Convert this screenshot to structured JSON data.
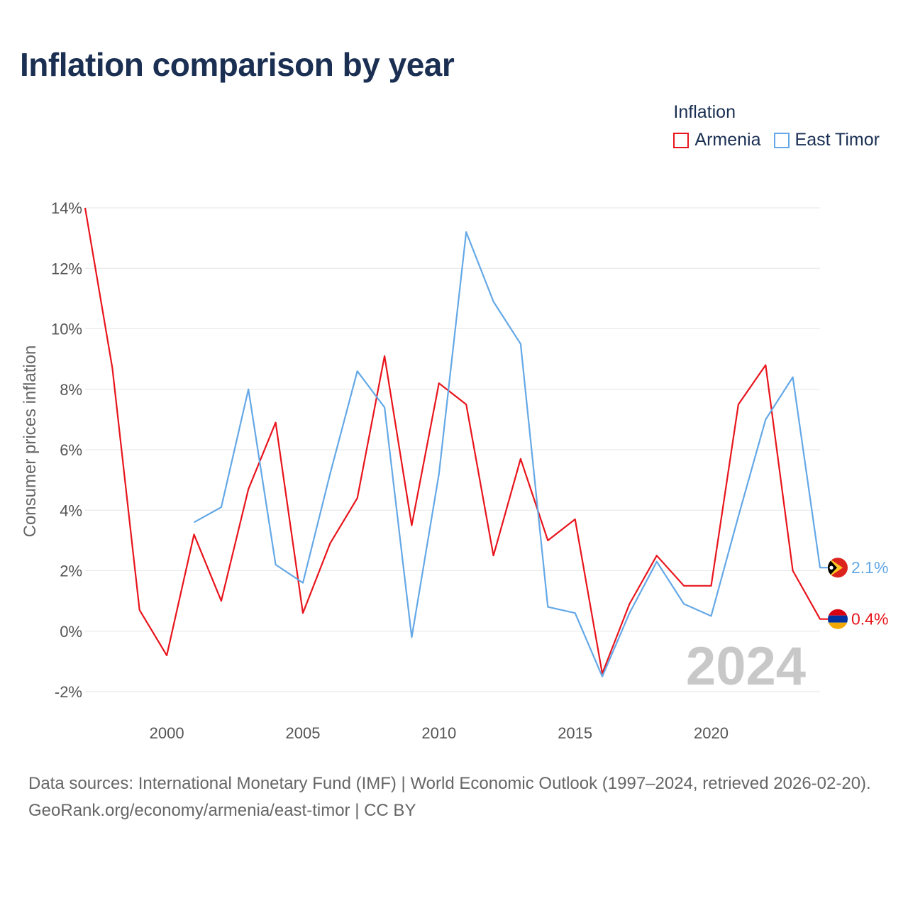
{
  "title": "Inflation comparison by year",
  "legend": {
    "title": "Inflation",
    "items": [
      {
        "label": "Armenia",
        "color": "#e8141c"
      },
      {
        "label": "East Timor",
        "color": "#64a8e6"
      }
    ]
  },
  "footer": {
    "sources": "Data sources: International Monetary Fund (IMF) | World Economic Outlook (1997–2024, retrieved 2026-02-20).",
    "credit": "GeoRank.org/economy/armenia/east-timor | CC BY"
  },
  "chart_data": {
    "type": "line",
    "title": "Inflation comparison by year",
    "xlabel": "",
    "ylabel": "Consumer prices inflation",
    "year_watermark": "2024",
    "xlim": [
      1997,
      2024
    ],
    "ylim": [
      -2.5,
      14
    ],
    "x_ticks": [
      2000,
      2005,
      2010,
      2015,
      2020
    ],
    "y_ticks": [
      -2,
      0,
      2,
      4,
      6,
      8,
      10,
      12,
      14
    ],
    "y_tick_labels": [
      "-2%",
      "0%",
      "2%",
      "4%",
      "6%",
      "8%",
      "10%",
      "12%",
      "14%"
    ],
    "grid": true,
    "legend_position": "top-right",
    "series": [
      {
        "name": "Armenia",
        "color": "#e8141c",
        "end_label": "0.4%",
        "x": [
          1997,
          1998,
          1999,
          2000,
          2001,
          2002,
          2003,
          2004,
          2005,
          2006,
          2007,
          2008,
          2009,
          2010,
          2011,
          2012,
          2013,
          2014,
          2015,
          2016,
          2017,
          2018,
          2019,
          2020,
          2021,
          2022,
          2023,
          2024
        ],
        "values": [
          14.0,
          8.7,
          0.7,
          -0.8,
          3.2,
          1.0,
          4.7,
          6.9,
          0.6,
          2.9,
          4.4,
          9.1,
          3.5,
          8.2,
          7.5,
          2.5,
          5.7,
          3.0,
          3.7,
          -1.4,
          0.9,
          2.5,
          1.5,
          1.5,
          7.5,
          8.8,
          2.0,
          0.4
        ]
      },
      {
        "name": "East Timor",
        "color": "#64a8e6",
        "end_label": "2.1%",
        "x": [
          2001,
          2002,
          2003,
          2004,
          2005,
          2006,
          2007,
          2008,
          2009,
          2010,
          2011,
          2012,
          2013,
          2014,
          2015,
          2016,
          2017,
          2018,
          2019,
          2020,
          2021,
          2022,
          2023,
          2024
        ],
        "values": [
          3.6,
          4.1,
          8.0,
          2.2,
          1.6,
          5.2,
          8.6,
          7.4,
          -0.2,
          5.2,
          13.2,
          10.9,
          9.5,
          0.8,
          0.6,
          -1.5,
          0.6,
          2.3,
          0.9,
          0.5,
          3.8,
          7.0,
          8.4,
          2.1
        ]
      }
    ]
  }
}
